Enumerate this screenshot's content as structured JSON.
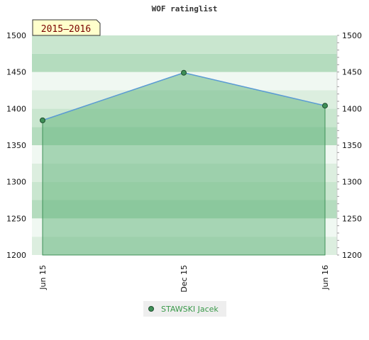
{
  "chart_data": {
    "type": "area",
    "title": "WOF ratinglist",
    "badge": "2015–2016",
    "x": [
      "Jun 15",
      "Dec 15",
      "Jun 16"
    ],
    "series": [
      {
        "name": "STAWSKI Jacek",
        "values": [
          1384,
          1449,
          1404
        ]
      }
    ],
    "ylim": [
      1200,
      1500
    ],
    "yticks": [
      1200,
      1250,
      1300,
      1350,
      1400,
      1450,
      1500
    ],
    "y_axis_both_sides": true,
    "legend_position": "bottom",
    "colors": {
      "line": "#5b9bd5",
      "area": "#6ab882",
      "marker": "#3e8f57",
      "badge_bg": "#ffffcc",
      "legend_bg": "#eeeeee"
    }
  }
}
